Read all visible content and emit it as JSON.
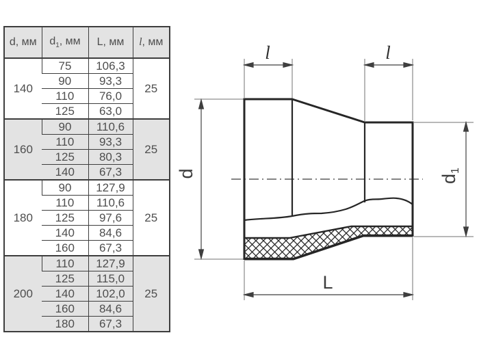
{
  "table": {
    "headers": [
      {
        "main": "d",
        "sub": "",
        "unit": ", мм",
        "italic": false
      },
      {
        "main": "d",
        "sub": "1",
        "unit": ", мм",
        "italic": false
      },
      {
        "main": "L",
        "sub": "",
        "unit": ", мм",
        "italic": false
      },
      {
        "main": "l",
        "sub": "",
        "unit": ", мм",
        "italic": true
      }
    ],
    "groups": [
      {
        "d": "140",
        "l": "25",
        "shaded": false,
        "rows": [
          [
            "75",
            "106,3"
          ],
          [
            "90",
            "93,3"
          ],
          [
            "110",
            "76,0"
          ],
          [
            "125",
            "63,0"
          ]
        ]
      },
      {
        "d": "160",
        "l": "25",
        "shaded": true,
        "rows": [
          [
            "90",
            "110,6"
          ],
          [
            "110",
            "93,3"
          ],
          [
            "125",
            "80,3"
          ],
          [
            "140",
            "67,3"
          ]
        ]
      },
      {
        "d": "180",
        "l": "25",
        "shaded": false,
        "rows": [
          [
            "90",
            "127,9"
          ],
          [
            "110",
            "110,6"
          ],
          [
            "125",
            "97,6"
          ],
          [
            "140",
            "84,6"
          ],
          [
            "160",
            "67,3"
          ]
        ]
      },
      {
        "d": "200",
        "l": "25",
        "shaded": true,
        "rows": [
          [
            "110",
            "127,9"
          ],
          [
            "125",
            "115,0"
          ],
          [
            "140",
            "102,0"
          ],
          [
            "160",
            "84,6"
          ],
          [
            "180",
            "67,3"
          ]
        ]
      }
    ]
  },
  "drawing": {
    "label_l_left": "l",
    "label_l_right": "l",
    "label_d": "d",
    "label_d1_main": "d",
    "label_d1_sub": "1",
    "label_L": "L"
  },
  "colors": {
    "shaded_cell": "#e3e3e3",
    "table_border": "#3d3d3d",
    "outline": "#262626",
    "thin_line": "#707070"
  }
}
